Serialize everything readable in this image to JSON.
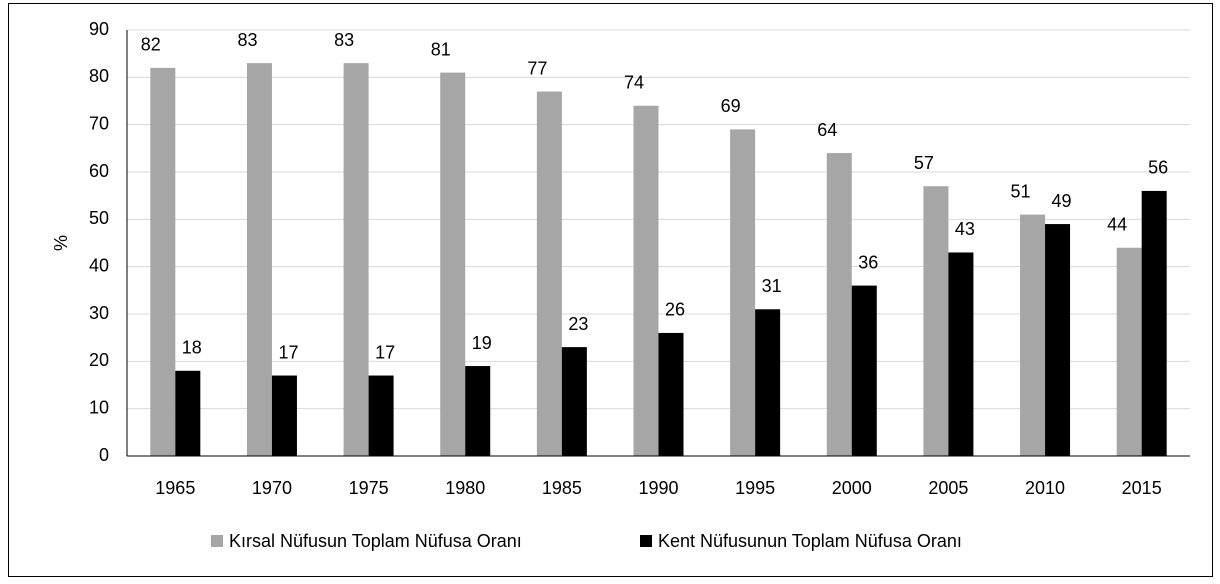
{
  "chart_data": {
    "type": "bar",
    "categories": [
      "1965",
      "1970",
      "1975",
      "1980",
      "1985",
      "1990",
      "1995",
      "2000",
      "2005",
      "2010",
      "2015"
    ],
    "series": [
      {
        "name": "Kırsal Nüfusun Toplam Nüfusa Oranı",
        "color": "#a6a6a6",
        "values": [
          82,
          83,
          83,
          81,
          77,
          74,
          69,
          64,
          57,
          51,
          44
        ]
      },
      {
        "name": "Kent Nüfusunun Toplam Nüfusa Oranı",
        "color": "#000000",
        "values": [
          18,
          17,
          17,
          19,
          23,
          26,
          31,
          36,
          43,
          49,
          56
        ]
      }
    ],
    "ylabel": "%",
    "ylim": [
      0,
      90
    ],
    "yticks": [
      0,
      10,
      20,
      30,
      40,
      50,
      60,
      70,
      80,
      90
    ],
    "grid": true,
    "legend": "bottom"
  }
}
